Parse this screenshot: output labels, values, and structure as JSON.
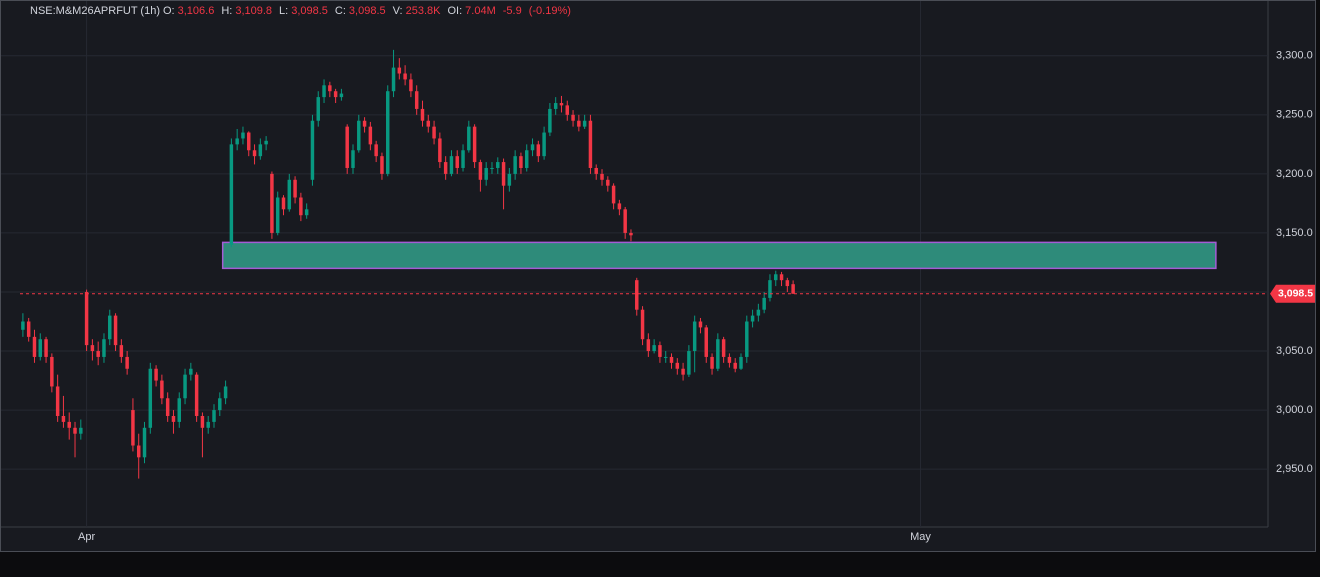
{
  "chart_data": {
    "type": "candlestick",
    "title": "NSE:M&M26APRFUT (1h)",
    "legend": [
      {
        "label": "O:",
        "value": "3,106.6"
      },
      {
        "label": "H:",
        "value": "3,109.8"
      },
      {
        "label": "L:",
        "value": "3,098.5"
      },
      {
        "label": "C:",
        "value": "3,098.5"
      },
      {
        "label": "V:",
        "value": "253.8K"
      },
      {
        "label": "OI:",
        "value": "7.04M"
      }
    ],
    "change": "-5.9",
    "change_pct": "(-0.19%)",
    "up_color": "#089981",
    "down_color": "#f23645",
    "grid": true,
    "ylim": [
      2901,
      3343
    ],
    "yticks": [
      {
        "value": 2950,
        "label": "2,950.0"
      },
      {
        "value": 3000,
        "label": "3,000.0"
      },
      {
        "value": 3050,
        "label": "3,050.0"
      },
      {
        "value": 3100,
        "label": "3,100.0"
      },
      {
        "value": 3150,
        "label": "3,150.0"
      },
      {
        "value": 3200,
        "label": "3,200.0"
      },
      {
        "value": 3250,
        "label": "3,250.0"
      },
      {
        "value": 3300,
        "label": "3,300.0"
      }
    ],
    "xlim": [
      -0.5,
      215
    ],
    "xticks": [
      {
        "value": 11,
        "label": "Apr"
      },
      {
        "value": 155,
        "label": "May"
      }
    ],
    "last_price": {
      "value": 3098.5,
      "label": "3,098.5"
    },
    "zone": {
      "x": [
        34.5,
        206
      ],
      "y": [
        3120,
        3142
      ],
      "color": "#2e8b7a"
    },
    "ohlc": [
      [
        3068,
        3082,
        3062,
        3075
      ],
      [
        3075,
        3078,
        3058,
        3062
      ],
      [
        3062,
        3068,
        3040,
        3045
      ],
      [
        3045,
        3065,
        3042,
        3060
      ],
      [
        3060,
        3062,
        3040,
        3045
      ],
      [
        3045,
        3048,
        3015,
        3020
      ],
      [
        3020,
        3030,
        2990,
        2995
      ],
      [
        2995,
        3012,
        2985,
        2990
      ],
      [
        2990,
        2998,
        2975,
        2985
      ],
      [
        2985,
        2990,
        2960,
        2980
      ],
      [
        2980,
        2992,
        2975,
        2985
      ],
      [
        3100,
        3102,
        3050,
        3055
      ],
      [
        3055,
        3060,
        3042,
        3050
      ],
      [
        3050,
        3058,
        3038,
        3045
      ],
      [
        3045,
        3065,
        3040,
        3060
      ],
      [
        3060,
        3085,
        3055,
        3080
      ],
      [
        3080,
        3082,
        3050,
        3055
      ],
      [
        3055,
        3060,
        3040,
        3045
      ],
      [
        3045,
        3050,
        3030,
        3035
      ],
      [
        3000,
        3010,
        2965,
        2970
      ],
      [
        2970,
        2980,
        2942,
        2960
      ],
      [
        2960,
        2990,
        2955,
        2985
      ],
      [
        2985,
        3040,
        2980,
        3035
      ],
      [
        3035,
        3038,
        3020,
        3025
      ],
      [
        3025,
        3030,
        3005,
        3010
      ],
      [
        3010,
        3015,
        2990,
        2995
      ],
      [
        2995,
        3000,
        2980,
        2990
      ],
      [
        2990,
        3015,
        2985,
        3010
      ],
      [
        3010,
        3035,
        3005,
        3030
      ],
      [
        3030,
        3040,
        3025,
        3035
      ],
      [
        3030,
        3032,
        2990,
        2995
      ],
      [
        2995,
        2998,
        2960,
        2985
      ],
      [
        2985,
        2995,
        2980,
        2990
      ],
      [
        2990,
        3005,
        2985,
        3000
      ],
      [
        3000,
        3015,
        2995,
        3010
      ],
      [
        3010,
        3025,
        3005,
        3020
      ],
      [
        3140,
        3230,
        3138,
        3225
      ],
      [
        3225,
        3238,
        3220,
        3230
      ],
      [
        3230,
        3240,
        3225,
        3235
      ],
      [
        3235,
        3236,
        3215,
        3220
      ],
      [
        3220,
        3225,
        3208,
        3215
      ],
      [
        3215,
        3230,
        3212,
        3225
      ],
      [
        3225,
        3232,
        3220,
        3228
      ],
      [
        3200,
        3202,
        3145,
        3150
      ],
      [
        3150,
        3185,
        3148,
        3180
      ],
      [
        3180,
        3182,
        3165,
        3170
      ],
      [
        3170,
        3200,
        3168,
        3195
      ],
      [
        3195,
        3198,
        3175,
        3180
      ],
      [
        3180,
        3184,
        3160,
        3165
      ],
      [
        3165,
        3175,
        3162,
        3170
      ],
      [
        3195,
        3250,
        3190,
        3245
      ],
      [
        3245,
        3270,
        3240,
        3265
      ],
      [
        3265,
        3280,
        3260,
        3275
      ],
      [
        3275,
        3278,
        3265,
        3270
      ],
      [
        3270,
        3272,
        3260,
        3265
      ],
      [
        3265,
        3272,
        3262,
        3268
      ],
      [
        3240,
        3242,
        3200,
        3205
      ],
      [
        3205,
        3225,
        3200,
        3220
      ],
      [
        3220,
        3250,
        3218,
        3245
      ],
      [
        3245,
        3248,
        3235,
        3240
      ],
      [
        3240,
        3244,
        3220,
        3225
      ],
      [
        3225,
        3228,
        3210,
        3215
      ],
      [
        3215,
        3218,
        3195,
        3200
      ],
      [
        3200,
        3275,
        3198,
        3270
      ],
      [
        3270,
        3305,
        3265,
        3290
      ],
      [
        3290,
        3298,
        3280,
        3285
      ],
      [
        3285,
        3292,
        3275,
        3280
      ],
      [
        3280,
        3285,
        3265,
        3270
      ],
      [
        3270,
        3275,
        3250,
        3255
      ],
      [
        3255,
        3262,
        3240,
        3245
      ],
      [
        3245,
        3250,
        3235,
        3240
      ],
      [
        3240,
        3245,
        3225,
        3230
      ],
      [
        3230,
        3235,
        3205,
        3210
      ],
      [
        3210,
        3215,
        3195,
        3200
      ],
      [
        3200,
        3220,
        3198,
        3215
      ],
      [
        3215,
        3220,
        3200,
        3205
      ],
      [
        3205,
        3225,
        3202,
        3220
      ],
      [
        3220,
        3245,
        3218,
        3240
      ],
      [
        3240,
        3242,
        3205,
        3210
      ],
      [
        3210,
        3212,
        3185,
        3195
      ],
      [
        3195,
        3210,
        3190,
        3205
      ],
      [
        3205,
        3210,
        3200,
        3205
      ],
      [
        3205,
        3214,
        3200,
        3210
      ],
      [
        3210,
        3213,
        3170,
        3190
      ],
      [
        3190,
        3205,
        3185,
        3200
      ],
      [
        3200,
        3220,
        3195,
        3215
      ],
      [
        3215,
        3218,
        3200,
        3205
      ],
      [
        3205,
        3225,
        3202,
        3220
      ],
      [
        3220,
        3230,
        3215,
        3225
      ],
      [
        3225,
        3228,
        3210,
        3215
      ],
      [
        3215,
        3240,
        3212,
        3235
      ],
      [
        3235,
        3260,
        3232,
        3255
      ],
      [
        3255,
        3265,
        3250,
        3260
      ],
      [
        3260,
        3266,
        3252,
        3258
      ],
      [
        3258,
        3262,
        3245,
        3250
      ],
      [
        3250,
        3254,
        3240,
        3245
      ],
      [
        3245,
        3250,
        3236,
        3240
      ],
      [
        3240,
        3250,
        3238,
        3245
      ],
      [
        3245,
        3250,
        3200,
        3205
      ],
      [
        3205,
        3208,
        3195,
        3200
      ],
      [
        3200,
        3204,
        3190,
        3195
      ],
      [
        3195,
        3198,
        3185,
        3190
      ],
      [
        3190,
        3192,
        3170,
        3175
      ],
      [
        3175,
        3178,
        3165,
        3170
      ],
      [
        3170,
        3172,
        3145,
        3150
      ],
      [
        3150,
        3153,
        3143,
        3148
      ],
      [
        3110,
        3112,
        3080,
        3085
      ],
      [
        3085,
        3088,
        3055,
        3060
      ],
      [
        3060,
        3065,
        3045,
        3050
      ],
      [
        3050,
        3060,
        3048,
        3055
      ],
      [
        3055,
        3058,
        3040,
        3045
      ],
      [
        3045,
        3050,
        3040,
        3045
      ],
      [
        3045,
        3048,
        3035,
        3040
      ],
      [
        3040,
        3044,
        3030,
        3035
      ],
      [
        3035,
        3040,
        3025,
        3030
      ],
      [
        3030,
        3055,
        3028,
        3050
      ],
      [
        3050,
        3080,
        3032,
        3075
      ],
      [
        3075,
        3078,
        3065,
        3070
      ],
      [
        3070,
        3072,
        3040,
        3045
      ],
      [
        3045,
        3048,
        3030,
        3035
      ],
      [
        3035,
        3065,
        3033,
        3060
      ],
      [
        3060,
        3062,
        3040,
        3045
      ],
      [
        3045,
        3048,
        3036,
        3040
      ],
      [
        3040,
        3044,
        3032,
        3035
      ],
      [
        3035,
        3048,
        3034,
        3045
      ],
      [
        3045,
        3080,
        3040,
        3075
      ],
      [
        3075,
        3085,
        3070,
        3080
      ],
      [
        3080,
        3090,
        3075,
        3085
      ],
      [
        3085,
        3100,
        3082,
        3095
      ],
      [
        3095,
        3115,
        3092,
        3110
      ],
      [
        3110,
        3118,
        3105,
        3115
      ],
      [
        3115,
        3117,
        3105,
        3110
      ],
      [
        3110,
        3112,
        3100,
        3105
      ],
      [
        3106.6,
        3109.8,
        3098.5,
        3098.5
      ]
    ]
  }
}
